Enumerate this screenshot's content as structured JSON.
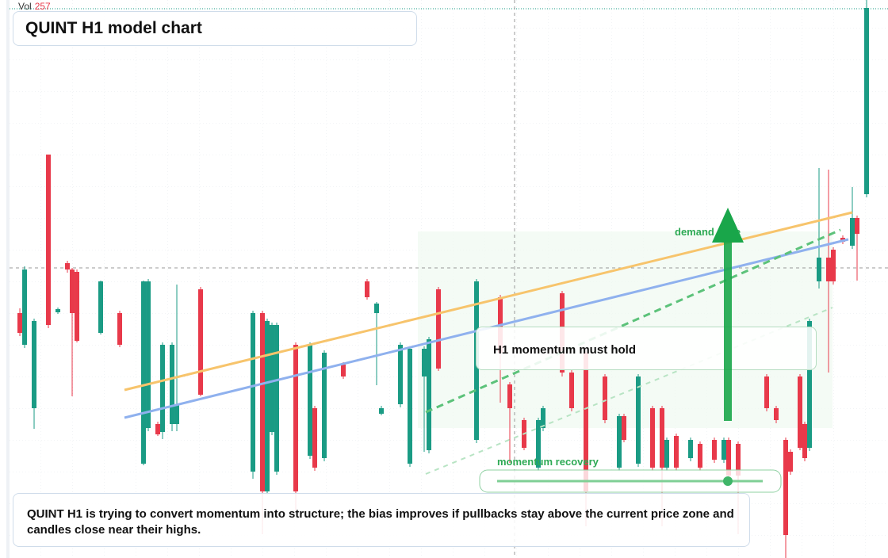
{
  "chart_data": {
    "type": "candlestick",
    "title": "QUINT H1 model chart",
    "volume_label": "Vol",
    "volume_value": 257,
    "annotations": [
      "demand zone",
      "H1 momentum must hold",
      "momentum recovery"
    ],
    "caption": "QUINT H1 is trying to convert momentum into structure; the bias improves if pullbacks stay above the current price zone and candles close near their highs.",
    "up_color": "#1a9b84",
    "down_color": "#e8394a",
    "xlim": [
      -4.17,
      182.5
    ],
    "ylim": [
      0,
      704
    ],
    "x": [
      0,
      1,
      3,
      6,
      8,
      10,
      11,
      12,
      17,
      21,
      26,
      27,
      29,
      30,
      32,
      33,
      38,
      49,
      51,
      52,
      53,
      54,
      58,
      61,
      62,
      64,
      68,
      73,
      75,
      76,
      80,
      82,
      85,
      86,
      88,
      96,
      101,
      103,
      106,
      109,
      110,
      114,
      116,
      119,
      123,
      126,
      127,
      130,
      133,
      135,
      136,
      138,
      141,
      143,
      146,
      148,
      149,
      151,
      157,
      159,
      161,
      162,
      164,
      165,
      166,
      168,
      170,
      171,
      173,
      175,
      176,
      178
    ],
    "open": [
      309,
      269,
      189,
      509,
      310,
      372,
      364,
      361,
      284,
      309,
      119,
      164,
      169,
      159,
      169,
      169,
      339,
      109,
      309,
      84,
      159,
      109,
      269,
      129,
      189,
      126,
      244,
      349,
      309,
      182,
      194,
      119,
      229,
      136,
      339,
      149,
      329,
      219,
      174,
      114,
      164,
      334,
      234,
      259,
      229,
      114,
      179,
      119,
      189,
      189,
      114,
      154,
      126,
      144,
      149,
      124,
      149,
      144,
      229,
      189,
      149,
      134,
      229,
      169,
      139,
      349,
      379,
      389,
      404,
      394,
      429,
      459
    ],
    "high": [
      315,
      368,
      302,
      509,
      316,
      375,
      366,
      364,
      350,
      312,
      350,
      352,
      172,
      272,
      272,
      345,
      342,
      312,
      312,
      302,
      297,
      297,
      272,
      272,
      192,
      262,
      247,
      352,
      323,
      192,
      272,
      267,
      267,
      279,
      342,
      352,
      332,
      222,
      177,
      177,
      192,
      337,
      237,
      262,
      232,
      182,
      182,
      232,
      192,
      192,
      152,
      157,
      152,
      147,
      152,
      152,
      152,
      147,
      232,
      192,
      152,
      137,
      232,
      172,
      302,
      492,
      490,
      392,
      407,
      468,
      432,
      704
    ],
    "low": [
      280,
      265,
      163,
      290,
      308,
      360,
      204,
      272,
      282,
      266,
      117,
      160,
      154,
      150,
      160,
      160,
      204,
      100,
      30,
      80,
      155,
      105,
      60,
      125,
      110,
      122,
      226,
      326,
      218,
      180,
      190,
      115,
      134,
      132,
      236,
      145,
      196,
      120,
      136,
      110,
      160,
      229,
      185,
      40,
      170,
      110,
      146,
      115,
      110,
      40,
      110,
      110,
      122,
      110,
      120,
      120,
      100,
      30,
      185,
      170,
      0,
      105,
      136,
      122,
      135,
      340,
      234,
      345,
      396,
      390,
      350,
      455
    ],
    "close": [
      284,
      364,
      299,
      294,
      314,
      364,
      309,
      274,
      349,
      269,
      349,
      349,
      156,
      269,
      269,
      194,
      206,
      309,
      84,
      299,
      294,
      294,
      84,
      269,
      114,
      259,
      229,
      329,
      321,
      189,
      269,
      264,
      264,
      276,
      239,
      349,
      259,
      189,
      139,
      174,
      189,
      234,
      189,
      84,
      174,
      179,
      149,
      229,
      114,
      114,
      149,
      114,
      149,
      114,
      124,
      149,
      104,
      104,
      189,
      174,
      29,
      109,
      139,
      126,
      299,
      379,
      349,
      349,
      399,
      429,
      409,
      694
    ]
  }
}
